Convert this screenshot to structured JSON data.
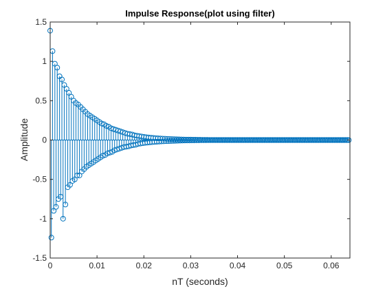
{
  "chart_data": {
    "type": "stem",
    "title": "Impulse Response(plot using filter)",
    "xlabel": "nT (seconds)",
    "ylabel": "Amplitude",
    "xlim": [
      0,
      0.064
    ],
    "ylim": [
      -1.5,
      1.5
    ],
    "x_ticks": [
      "0",
      "0.01",
      "0.02",
      "0.03",
      "0.04",
      "0.05",
      "0.06"
    ],
    "y_ticks": [
      "1.5",
      "1",
      "0.5",
      "0",
      "-0.5",
      "-1",
      "-1.5"
    ],
    "grid": false,
    "color": "#0072BD",
    "series": [
      {
        "sample_period": 0.00025,
        "num_samples": 256,
        "upper_values": [
          1.39,
          1.13,
          0.97,
          0.92,
          0.81,
          0.77,
          0.7,
          0.65,
          0.6,
          0.55,
          0.5,
          0.47,
          0.45,
          0.42,
          0.39,
          0.36,
          0.33,
          0.31,
          0.29,
          0.27,
          0.25,
          0.23,
          0.21,
          0.2,
          0.18,
          0.17,
          0.15,
          0.14,
          0.13,
          0.12,
          0.11,
          0.1,
          0.09,
          0.08,
          0.075,
          0.07,
          0.06,
          0.055,
          0.05,
          0.045,
          0.04,
          0.036,
          0.033,
          0.03,
          0.027,
          0.024,
          0.022,
          0.02,
          0.018,
          0.016,
          0.014,
          0.013,
          0.012,
          0.011,
          0.01,
          0.009,
          0.008,
          0.007,
          0.006,
          0.005,
          0.005,
          0.004,
          0.004,
          0.003,
          0.003,
          0.002,
          0.002,
          0.002,
          0.001,
          0.001,
          0.001,
          0.001,
          0.001,
          0.001,
          0.001,
          0.001,
          0.001,
          0.001,
          0.001,
          0.001,
          0.001,
          0.001,
          0.001,
          0.001,
          0.001,
          0.001,
          0.001,
          0.001,
          0.001,
          0.001,
          0.001,
          0.001,
          0.001,
          0.001,
          0.001,
          0.001,
          0.001,
          0.001,
          0.001,
          0.001,
          0.001,
          0.001,
          0.001,
          0.001,
          0.001,
          0.001,
          0.001,
          0.001,
          0.001,
          0.001,
          0.001,
          0.001,
          0.001,
          0.001,
          0.001,
          0.001,
          0.001,
          0.001,
          0.001,
          0.001,
          0.001,
          0.001,
          0.001,
          0.001,
          0.001,
          0.001,
          0.001,
          0.001
        ],
        "lower_values": [
          -1.24,
          -0.9,
          -0.85,
          -0.75,
          -0.72,
          -1.0,
          -0.82,
          -0.6,
          -0.57,
          -0.52,
          -0.5,
          -0.45,
          -0.45,
          -0.4,
          -0.37,
          -0.34,
          -0.32,
          -0.3,
          -0.28,
          -0.26,
          -0.24,
          -0.22,
          -0.2,
          -0.19,
          -0.17,
          -0.16,
          -0.15,
          -0.13,
          -0.12,
          -0.11,
          -0.1,
          -0.09,
          -0.085,
          -0.08,
          -0.07,
          -0.065,
          -0.06,
          -0.05,
          -0.045,
          -0.04,
          -0.036,
          -0.033,
          -0.03,
          -0.027,
          -0.024,
          -0.022,
          -0.02,
          -0.018,
          -0.016,
          -0.014,
          -0.013,
          -0.012,
          -0.011,
          -0.01,
          -0.009,
          -0.008,
          -0.007,
          -0.006,
          -0.005,
          -0.005,
          -0.004,
          -0.004,
          -0.003,
          -0.003,
          -0.002,
          -0.002,
          -0.002,
          -0.001,
          -0.001,
          -0.001,
          -0.001,
          -0.001,
          -0.001,
          -0.001,
          -0.001,
          -0.001,
          -0.001,
          -0.001,
          -0.001,
          -0.001,
          -0.001,
          -0.001,
          -0.001,
          -0.001,
          -0.001,
          -0.001,
          -0.001,
          -0.001,
          -0.001,
          -0.001,
          -0.001,
          -0.001,
          -0.001,
          -0.001,
          -0.001,
          -0.001,
          -0.001,
          -0.001,
          -0.001,
          -0.001,
          -0.001,
          -0.001,
          -0.001,
          -0.001,
          -0.001,
          -0.001,
          -0.001,
          -0.001,
          -0.001,
          -0.001,
          -0.001,
          -0.001,
          -0.001,
          -0.001,
          -0.001,
          -0.001,
          -0.001,
          -0.001,
          -0.001,
          -0.001,
          -0.001,
          -0.001,
          -0.001,
          -0.001,
          -0.001,
          -0.001,
          -0.001,
          -0.001
        ]
      }
    ]
  }
}
